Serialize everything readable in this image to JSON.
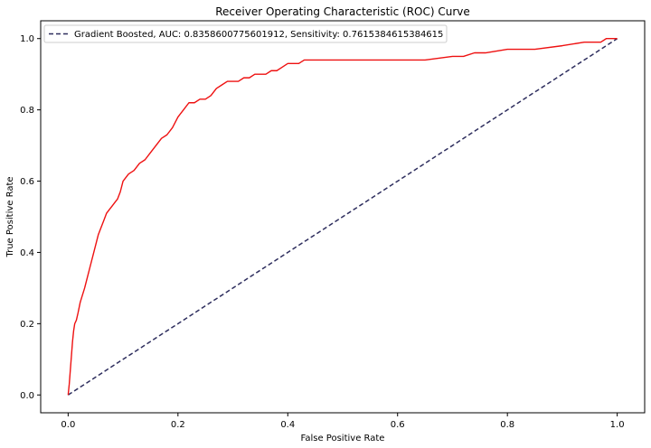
{
  "chart_data": {
    "type": "line",
    "title": "Receiver Operating Characteristic (ROC) Curve",
    "xlabel": "False Positive Rate",
    "ylabel": "True Positive Rate",
    "xlim": [
      -0.05,
      1.05
    ],
    "ylim": [
      -0.05,
      1.05
    ],
    "xticks": [
      0.0,
      0.2,
      0.4,
      0.6,
      0.8,
      1.0
    ],
    "yticks": [
      0.0,
      0.2,
      0.4,
      0.6,
      0.8,
      1.0
    ],
    "xtick_labels": [
      "0.0",
      "0.2",
      "0.4",
      "0.6",
      "0.8",
      "1.0"
    ],
    "ytick_labels": [
      "0.0",
      "0.2",
      "0.4",
      "0.6",
      "0.8",
      "1.0"
    ],
    "grid": false,
    "legend": {
      "placement": "top-left",
      "entries": [
        "Gradient Boosted, AUC: 0.8358600775601912, Sensitivity: 0.7615384615384615"
      ]
    },
    "series": [
      {
        "name": "Gradient Boosted, AUC: 0.8358600775601912, Sensitivity: 0.7615384615384615",
        "style": "dashed",
        "color": "#2e2e5e",
        "x": [
          0.0,
          1.0
        ],
        "y": [
          0.0,
          1.0
        ]
      },
      {
        "style": "solid",
        "color": "#ee1111",
        "x": [
          0.0,
          0.002,
          0.004,
          0.006,
          0.008,
          0.01,
          0.012,
          0.015,
          0.018,
          0.022,
          0.026,
          0.03,
          0.035,
          0.04,
          0.045,
          0.05,
          0.055,
          0.06,
          0.065,
          0.07,
          0.075,
          0.08,
          0.085,
          0.09,
          0.095,
          0.1,
          0.11,
          0.12,
          0.13,
          0.14,
          0.15,
          0.16,
          0.17,
          0.18,
          0.19,
          0.2,
          0.21,
          0.22,
          0.23,
          0.24,
          0.25,
          0.26,
          0.27,
          0.28,
          0.29,
          0.3,
          0.31,
          0.32,
          0.33,
          0.34,
          0.35,
          0.36,
          0.37,
          0.38,
          0.39,
          0.4,
          0.41,
          0.42,
          0.43,
          0.44,
          0.45,
          0.5,
          0.55,
          0.6,
          0.65,
          0.7,
          0.72,
          0.74,
          0.76,
          0.8,
          0.85,
          0.9,
          0.94,
          0.95,
          0.96,
          0.97,
          0.98,
          0.99,
          1.0
        ],
        "y": [
          0.0,
          0.03,
          0.07,
          0.11,
          0.15,
          0.18,
          0.2,
          0.21,
          0.23,
          0.26,
          0.28,
          0.3,
          0.33,
          0.36,
          0.39,
          0.42,
          0.45,
          0.47,
          0.49,
          0.51,
          0.52,
          0.53,
          0.54,
          0.55,
          0.57,
          0.6,
          0.62,
          0.63,
          0.65,
          0.66,
          0.68,
          0.7,
          0.72,
          0.73,
          0.75,
          0.78,
          0.8,
          0.82,
          0.82,
          0.83,
          0.83,
          0.84,
          0.86,
          0.87,
          0.88,
          0.88,
          0.88,
          0.89,
          0.89,
          0.9,
          0.9,
          0.9,
          0.91,
          0.91,
          0.92,
          0.93,
          0.93,
          0.93,
          0.94,
          0.94,
          0.94,
          0.94,
          0.94,
          0.94,
          0.94,
          0.95,
          0.95,
          0.96,
          0.96,
          0.97,
          0.97,
          0.98,
          0.99,
          0.99,
          0.99,
          0.99,
          1.0,
          1.0,
          1.0
        ]
      }
    ]
  }
}
